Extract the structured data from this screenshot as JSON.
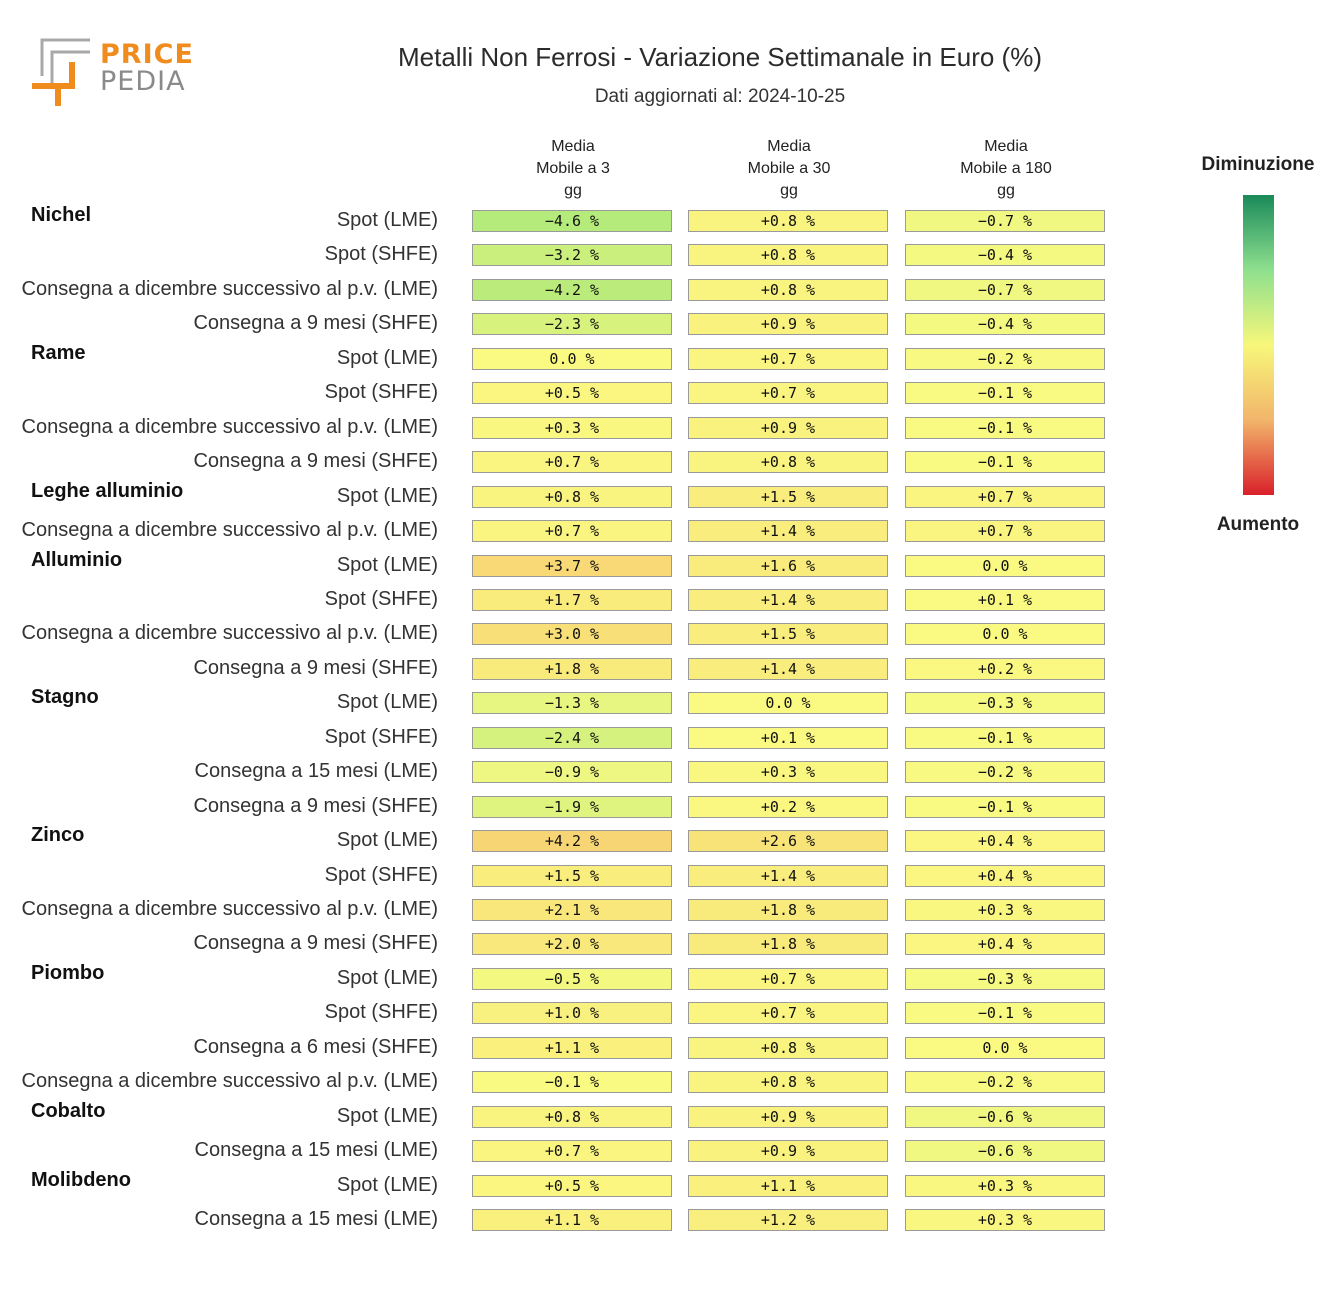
{
  "header": {
    "logo_line1": "PRICE",
    "logo_line2": "PEDIA",
    "title": "Metalli Non Ferrosi - Variazione Settimanale in Euro (%)",
    "subtitle": "Dati aggiornati al: 2024-10-25"
  },
  "legend": {
    "top_label": "Diminuzione",
    "bottom_label": "Aumento",
    "colors": [
      "#1a8a5a",
      "#8ee08e",
      "#f7f77a",
      "#f2b56a",
      "#d9202a"
    ]
  },
  "chart_data": {
    "type": "heatmap",
    "title": "Metalli Non Ferrosi - Variazione Settimanale in Euro (%)",
    "columns": [
      "Media\nMobile a 3\ngg",
      "Media\nMobile a 30\ngg",
      "Media\nMobile a 180\ngg"
    ],
    "unit": "%",
    "rows": [
      {
        "group": "Nichel",
        "label": "Spot (LME)",
        "values": [
          -4.6,
          0.8,
          -0.7
        ]
      },
      {
        "group": "",
        "label": "Spot (SHFE)",
        "values": [
          -3.2,
          0.8,
          -0.4
        ]
      },
      {
        "group": "",
        "label": "Consegna a dicembre successivo al p.v. (LME)",
        "values": [
          -4.2,
          0.8,
          -0.7
        ]
      },
      {
        "group": "",
        "label": "Consegna a 9 mesi (SHFE)",
        "values": [
          -2.3,
          0.9,
          -0.4
        ]
      },
      {
        "group": "Rame",
        "label": "Spot (LME)",
        "values": [
          0.0,
          0.7,
          -0.2
        ]
      },
      {
        "group": "",
        "label": "Spot (SHFE)",
        "values": [
          0.5,
          0.7,
          -0.1
        ]
      },
      {
        "group": "",
        "label": "Consegna a dicembre successivo al p.v. (LME)",
        "values": [
          0.3,
          0.9,
          -0.1
        ]
      },
      {
        "group": "",
        "label": "Consegna a 9 mesi (SHFE)",
        "values": [
          0.7,
          0.8,
          -0.1
        ]
      },
      {
        "group": "Leghe alluminio",
        "label": "Spot (LME)",
        "values": [
          0.8,
          1.5,
          0.7
        ]
      },
      {
        "group": "",
        "label": "Consegna a dicembre successivo al p.v. (LME)",
        "values": [
          0.7,
          1.4,
          0.7
        ]
      },
      {
        "group": "Alluminio",
        "label": "Spot (LME)",
        "values": [
          3.7,
          1.6,
          0.0
        ]
      },
      {
        "group": "",
        "label": "Spot (SHFE)",
        "values": [
          1.7,
          1.4,
          0.1
        ]
      },
      {
        "group": "",
        "label": "Consegna a dicembre successivo al p.v. (LME)",
        "values": [
          3.0,
          1.5,
          0.0
        ]
      },
      {
        "group": "",
        "label": "Consegna a 9 mesi (SHFE)",
        "values": [
          1.8,
          1.4,
          0.2
        ]
      },
      {
        "group": "Stagno",
        "label": "Spot (LME)",
        "values": [
          -1.3,
          0.0,
          -0.3
        ]
      },
      {
        "group": "",
        "label": "Spot (SHFE)",
        "values": [
          -2.4,
          0.1,
          -0.1
        ]
      },
      {
        "group": "",
        "label": "Consegna a 15 mesi (LME)",
        "values": [
          -0.9,
          0.3,
          -0.2
        ]
      },
      {
        "group": "",
        "label": "Consegna a 9 mesi (SHFE)",
        "values": [
          -1.9,
          0.2,
          -0.1
        ]
      },
      {
        "group": "Zinco",
        "label": "Spot (LME)",
        "values": [
          4.2,
          2.6,
          0.4
        ]
      },
      {
        "group": "",
        "label": "Spot (SHFE)",
        "values": [
          1.5,
          1.4,
          0.4
        ]
      },
      {
        "group": "",
        "label": "Consegna a dicembre successivo al p.v. (LME)",
        "values": [
          2.1,
          1.8,
          0.3
        ]
      },
      {
        "group": "",
        "label": "Consegna a 9 mesi (SHFE)",
        "values": [
          2.0,
          1.8,
          0.4
        ]
      },
      {
        "group": "Piombo",
        "label": "Spot (LME)",
        "values": [
          -0.5,
          0.7,
          -0.3
        ]
      },
      {
        "group": "",
        "label": "Spot (SHFE)",
        "values": [
          1.0,
          0.7,
          -0.1
        ]
      },
      {
        "group": "",
        "label": "Consegna a 6 mesi (SHFE)",
        "values": [
          1.1,
          0.8,
          0.0
        ]
      },
      {
        "group": "",
        "label": "Consegna a dicembre successivo al p.v. (LME)",
        "values": [
          -0.1,
          0.8,
          -0.2
        ]
      },
      {
        "group": "Cobalto",
        "label": "Spot (LME)",
        "values": [
          0.8,
          0.9,
          -0.6
        ]
      },
      {
        "group": "",
        "label": "Consegna a 15 mesi (LME)",
        "values": [
          0.7,
          0.9,
          -0.6
        ]
      },
      {
        "group": "Molibdeno",
        "label": "Spot (LME)",
        "values": [
          0.5,
          1.1,
          0.3
        ]
      },
      {
        "group": "",
        "label": "Consegna a 15 mesi (LME)",
        "values": [
          1.1,
          1.2,
          0.3
        ]
      }
    ]
  }
}
